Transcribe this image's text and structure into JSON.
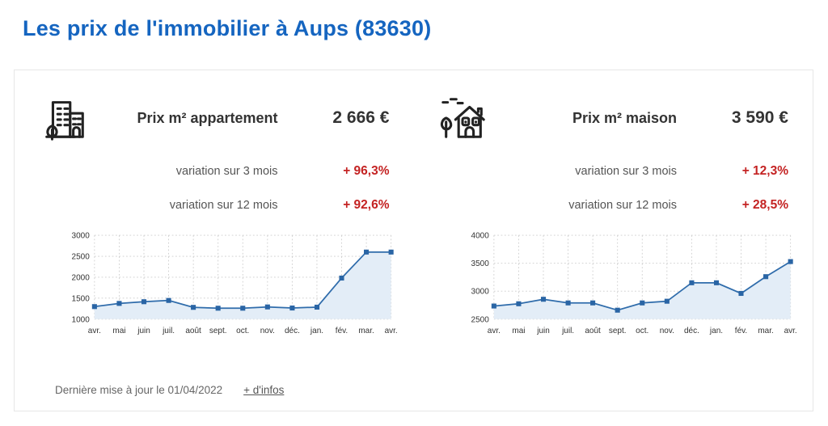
{
  "page": {
    "title": "Les prix de l'immobilier à Aups (83630)"
  },
  "colors": {
    "title_blue": "#1565c0",
    "accent_red": "#c42323",
    "line_blue": "#2f6cab",
    "marker_blue": "#2a65a5",
    "area_fill": "#e3edf7",
    "grid_gray": "#cccccc"
  },
  "panels": [
    {
      "icon": "apartment-building-icon",
      "title": "Prix m² appartement",
      "price": "2 666 €",
      "variations": [
        {
          "label": "variation sur 3 mois",
          "value": "+ 96,3%"
        },
        {
          "label": "variation sur 12 mois",
          "value": "+ 92,6%"
        }
      ]
    },
    {
      "icon": "house-icon",
      "title": "Prix m² maison",
      "price": "3 590 €",
      "variations": [
        {
          "label": "variation sur 3 mois",
          "value": "+ 12,3%"
        },
        {
          "label": "variation sur 12 mois",
          "value": "+ 28,5%"
        }
      ]
    }
  ],
  "chart_data": [
    {
      "type": "area",
      "title": "Prix m² appartement",
      "categories": [
        "avr.",
        "mai",
        "juin",
        "juil.",
        "août",
        "sept.",
        "oct.",
        "nov.",
        "déc.",
        "jan.",
        "fév.",
        "mar.",
        "avr."
      ],
      "values": [
        1300,
        1375,
        1415,
        1445,
        1280,
        1260,
        1260,
        1290,
        1265,
        1285,
        1980,
        2600,
        2600
      ],
      "xlabel": "",
      "ylabel": "",
      "ylim": [
        1000,
        3000
      ],
      "yticks": [
        1000,
        1500,
        2000,
        2500,
        3000
      ],
      "grid": true,
      "legend": false
    },
    {
      "type": "area",
      "title": "Prix m² maison",
      "categories": [
        "avr.",
        "mai",
        "juin",
        "juil.",
        "août",
        "sept.",
        "oct.",
        "nov.",
        "déc.",
        "jan.",
        "fév.",
        "mar.",
        "avr."
      ],
      "values": [
        2735,
        2775,
        2855,
        2790,
        2790,
        2660,
        2790,
        2820,
        3150,
        3150,
        2960,
        3260,
        3530
      ],
      "xlabel": "",
      "ylabel": "",
      "ylim": [
        2500,
        4000
      ],
      "yticks": [
        2500,
        3000,
        3500,
        4000
      ],
      "grid": true,
      "legend": false
    }
  ],
  "footer": {
    "updated_text": "Dernière mise à jour le 01/04/2022",
    "more_info_label": "+ d'infos"
  }
}
